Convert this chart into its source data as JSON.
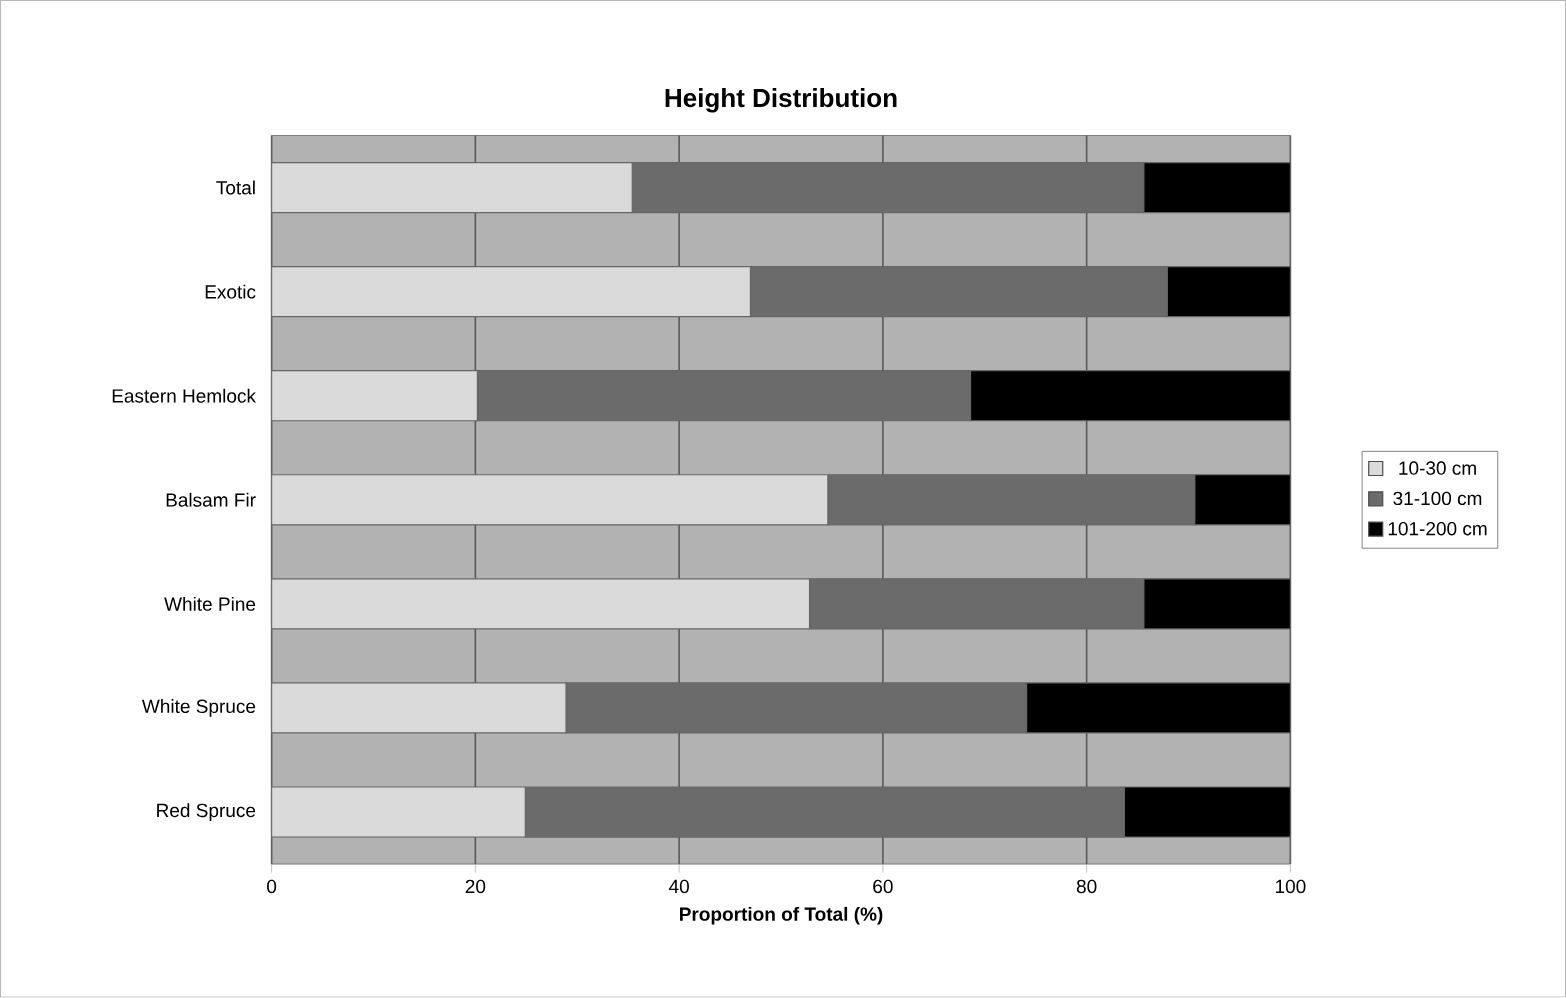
{
  "chart_data": {
    "type": "bar",
    "orientation": "horizontal",
    "stacked": true,
    "title": "Height Distribution",
    "xlabel": "Proportion of Total (%)",
    "categories": [
      "Total",
      "Exotic",
      "Eastern Hemlock",
      "Balsam Fir",
      "White Pine",
      "White Spruce",
      "Red Spruce"
    ],
    "series": [
      {
        "name": "10-30 cm",
        "color": "#dadada",
        "values": [
          35.4,
          47.0,
          20.2,
          54.6,
          52.8,
          28.9,
          24.9
        ]
      },
      {
        "name": "31-100 cm",
        "color": "#6b6b6b",
        "values": [
          50.2,
          40.9,
          48.4,
          36.0,
          32.8,
          45.2,
          58.8
        ]
      },
      {
        "name": "101-200 cm",
        "color": "#000000",
        "values": [
          14.4,
          12.1,
          31.4,
          9.4,
          14.4,
          25.9,
          16.3
        ]
      }
    ],
    "xlim": [
      0,
      100
    ],
    "xticks": [
      0,
      20,
      40,
      60,
      80,
      100
    ],
    "grid": "x",
    "legend": "right"
  }
}
